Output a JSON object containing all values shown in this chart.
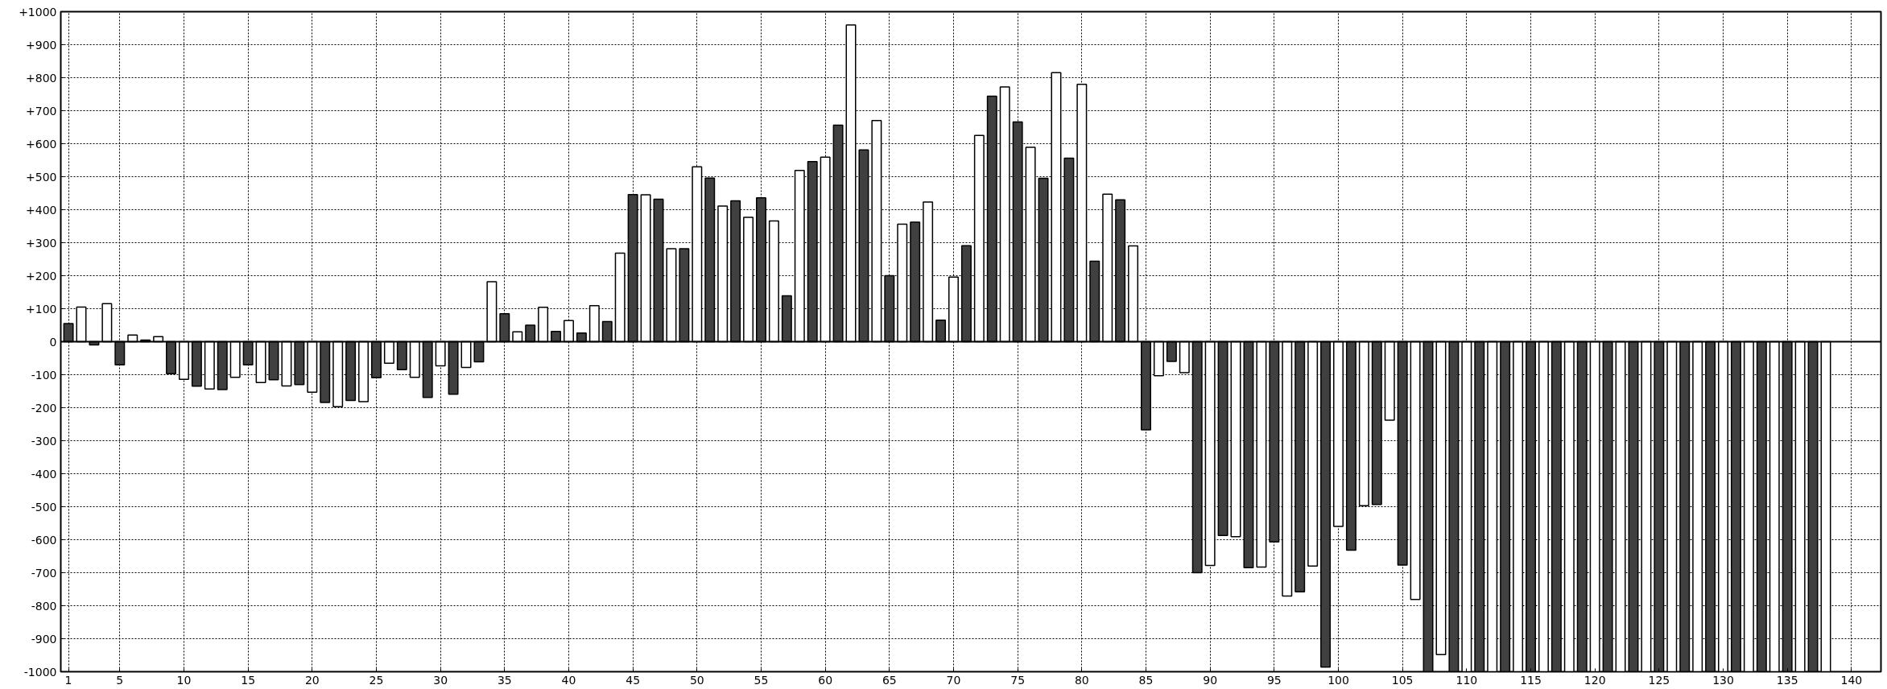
{
  "chart_data": {
    "type": "bar",
    "series": [
      {
        "color": "#404040",
        "x": [
          1,
          3,
          5,
          7,
          9,
          11,
          13,
          15,
          17,
          19,
          21,
          23,
          25,
          27,
          29,
          31,
          33,
          35,
          37,
          39,
          41,
          43,
          45,
          47,
          49,
          51,
          53,
          55,
          57,
          59,
          61,
          63,
          65,
          67,
          69,
          71,
          73,
          75,
          77,
          79,
          81,
          83,
          85,
          87,
          89,
          91,
          93,
          95,
          97,
          99,
          101,
          103,
          105,
          107,
          109,
          111,
          113,
          115,
          117,
          119,
          121,
          123,
          125,
          127,
          129,
          131,
          133,
          135,
          137
        ],
        "values": [
          55,
          -10,
          -70,
          5,
          -97,
          -135,
          -145,
          -70,
          -115,
          -130,
          -184,
          -178,
          -109,
          -85,
          -169,
          -159,
          -61,
          85,
          50,
          31,
          26,
          61,
          446,
          432,
          282,
          496,
          427,
          436,
          139,
          546,
          656,
          581,
          200,
          362,
          65,
          291,
          744,
          666,
          495,
          556,
          244,
          430,
          -267,
          -60,
          -700,
          -587,
          -685,
          -607,
          -758,
          -986,
          -632,
          -493,
          -677,
          -1000,
          -1000,
          -1000,
          -1000,
          -1000,
          -1000,
          -1000,
          -1000,
          -1000,
          -1000,
          -1000,
          -1000,
          -1000,
          -1000,
          -1000,
          -1000
        ]
      },
      {
        "color": "#ffffff",
        "x": [
          2,
          4,
          6,
          8,
          10,
          12,
          14,
          16,
          18,
          20,
          22,
          24,
          26,
          28,
          30,
          32,
          34,
          36,
          38,
          40,
          42,
          44,
          46,
          48,
          50,
          52,
          54,
          56,
          58,
          60,
          62,
          64,
          66,
          68,
          70,
          72,
          74,
          76,
          78,
          80,
          82,
          84,
          86,
          88,
          90,
          92,
          94,
          96,
          98,
          100,
          102,
          104,
          106,
          108,
          110,
          112,
          114,
          116,
          118,
          120,
          122,
          124,
          126,
          128,
          130,
          132,
          134,
          136,
          138
        ],
        "values": [
          105,
          115,
          20,
          15,
          -114,
          -143,
          -108,
          -124,
          -134,
          -153,
          -197,
          -182,
          -65,
          -108,
          -73,
          -78,
          182,
          30,
          104,
          64,
          109,
          268,
          445,
          282,
          530,
          411,
          377,
          366,
          519,
          559,
          960,
          670,
          356,
          423,
          196,
          625,
          772,
          589,
          815,
          780,
          447,
          290,
          -103,
          -94,
          -678,
          -591,
          -683,
          -771,
          -680,
          -560,
          -497,
          -238,
          -781,
          -948,
          -1000,
          -1000,
          -1000,
          -1000,
          -1000,
          -1000,
          -1000,
          -1000,
          -1000,
          -1000,
          -1000,
          -1000,
          -1000,
          -1000,
          -1000
        ]
      }
    ],
    "xlim": [
      0.4,
      142.3
    ],
    "xticks": [
      1,
      5,
      10,
      15,
      20,
      25,
      30,
      35,
      40,
      45,
      50,
      55,
      60,
      65,
      70,
      75,
      80,
      85,
      90,
      95,
      100,
      105,
      110,
      115,
      120,
      125,
      130,
      135,
      140
    ],
    "ylim": [
      -1000,
      1000
    ],
    "yticks": [
      {
        "value": -1000,
        "label": "-1000"
      },
      {
        "value": -900,
        "label": "-900"
      },
      {
        "value": -800,
        "label": "-800"
      },
      {
        "value": -700,
        "label": "-700"
      },
      {
        "value": -600,
        "label": "-600"
      },
      {
        "value": -500,
        "label": "-500"
      },
      {
        "value": -400,
        "label": "-400"
      },
      {
        "value": -300,
        "label": "-300"
      },
      {
        "value": -200,
        "label": "-200"
      },
      {
        "value": -100,
        "label": "-100"
      },
      {
        "value": 0,
        "label": "0"
      },
      {
        "value": 100,
        "label": "+100"
      },
      {
        "value": 200,
        "label": "+200"
      },
      {
        "value": 300,
        "label": "+300"
      },
      {
        "value": 400,
        "label": "+400"
      },
      {
        "value": 500,
        "label": "+500"
      },
      {
        "value": 600,
        "label": "+600"
      },
      {
        "value": 700,
        "label": "+700"
      },
      {
        "value": 800,
        "label": "+800"
      },
      {
        "value": 900,
        "label": "+900"
      },
      {
        "value": 1000,
        "label": "+1000"
      }
    ],
    "grid": true,
    "ref_lines": [
      {
        "axis": "y",
        "value": 0,
        "color": "#000000",
        "line_style": "solid"
      }
    ]
  }
}
